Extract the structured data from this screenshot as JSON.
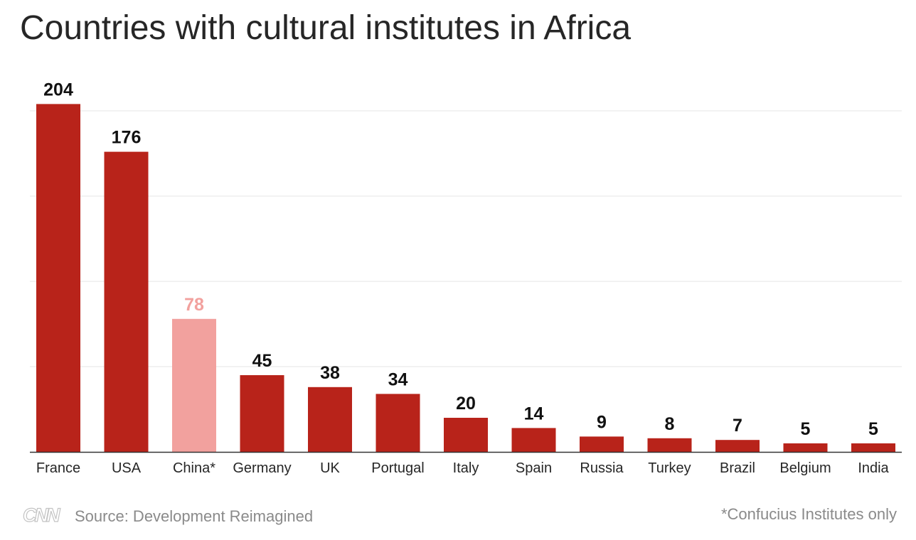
{
  "chart_data": {
    "type": "bar",
    "title": "Countries with cultural institutes in Africa",
    "categories": [
      "France",
      "USA",
      "China*",
      "Germany",
      "UK",
      "Portugal",
      "Italy",
      "Spain",
      "Russia",
      "Turkey",
      "Brazil",
      "Belgium",
      "India"
    ],
    "values": [
      204,
      176,
      78,
      45,
      38,
      34,
      20,
      14,
      9,
      8,
      7,
      5,
      5
    ],
    "highlight_category": "China*",
    "ylim": [
      0,
      200
    ],
    "grid": true,
    "colors": {
      "bar": "#b8231a",
      "highlight_bar": "#f2a19e",
      "label": "#111111",
      "highlight_label": "#f2a19e",
      "grid": "#e6e6e6",
      "axis": "#333333"
    }
  },
  "footer": {
    "logo": "CNN",
    "source": "Source: Development Reimagined",
    "note": "*Confucius Institutes only"
  }
}
